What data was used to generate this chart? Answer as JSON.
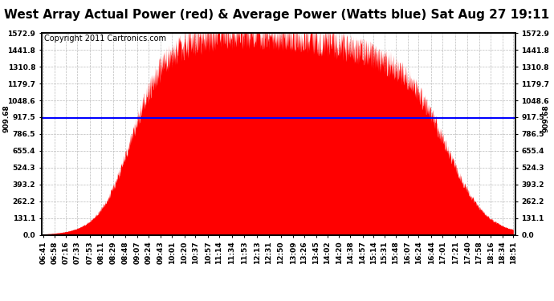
{
  "title": "West Array Actual Power (red) & Average Power (Watts blue) Sat Aug 27 19:11",
  "copyright": "Copyright 2011 Cartronics.com",
  "average_power": 909.68,
  "y_max": 1572.9,
  "y_min": 0.0,
  "y_ticks": [
    0.0,
    131.1,
    262.2,
    393.2,
    524.3,
    655.4,
    786.5,
    917.5,
    1048.6,
    1179.7,
    1310.8,
    1441.8,
    1572.9
  ],
  "x_labels": [
    "06:41",
    "06:58",
    "07:16",
    "07:33",
    "07:53",
    "08:11",
    "08:29",
    "08:48",
    "09:07",
    "09:24",
    "09:43",
    "10:01",
    "10:20",
    "10:37",
    "10:57",
    "11:14",
    "11:34",
    "11:53",
    "12:13",
    "12:31",
    "12:50",
    "13:09",
    "13:26",
    "13:45",
    "14:02",
    "14:20",
    "14:38",
    "14:57",
    "15:14",
    "15:31",
    "15:48",
    "16:07",
    "16:24",
    "16:44",
    "17:01",
    "17:21",
    "17:40",
    "17:58",
    "18:16",
    "18:34",
    "18:51"
  ],
  "fill_color": "#FF0000",
  "line_color": "#0000FF",
  "background_color": "#FFFFFF",
  "grid_color": "#BBBBBB",
  "title_fontsize": 11,
  "copyright_fontsize": 7,
  "tick_fontsize": 6.5,
  "left_label_909": "909.68",
  "right_label_909": "909.68"
}
